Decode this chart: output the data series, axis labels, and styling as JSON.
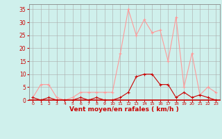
{
  "x": [
    0,
    1,
    2,
    3,
    4,
    5,
    6,
    7,
    8,
    9,
    10,
    11,
    12,
    13,
    14,
    15,
    16,
    17,
    18,
    19,
    20,
    21,
    22,
    23
  ],
  "wind_avg": [
    1,
    0,
    1,
    0,
    0,
    0,
    1,
    0,
    1,
    0,
    0,
    1,
    3,
    9,
    10,
    10,
    6,
    6,
    1,
    3,
    1,
    2,
    1,
    0
  ],
  "wind_gust": [
    1,
    6,
    6,
    1,
    0,
    1,
    3,
    3,
    3,
    3,
    3,
    18,
    35,
    25,
    31,
    26,
    27,
    15,
    32,
    5,
    18,
    2,
    5,
    3
  ],
  "bg_color": "#cff0ec",
  "grid_color": "#aaaaaa",
  "line_avg_color": "#cc0000",
  "line_gust_color": "#ff9999",
  "xlabel": "Vent moyen/en rafales ( km/h )",
  "ylabel_ticks": [
    0,
    5,
    10,
    15,
    20,
    25,
    30,
    35
  ],
  "ylim": [
    0,
    37
  ],
  "xlim": [
    -0.5,
    23.5
  ],
  "axis_label_color": "#cc0000",
  "tick_color": "#cc0000",
  "spine_color": "#888888",
  "bottom_spine_color": "#cc0000"
}
